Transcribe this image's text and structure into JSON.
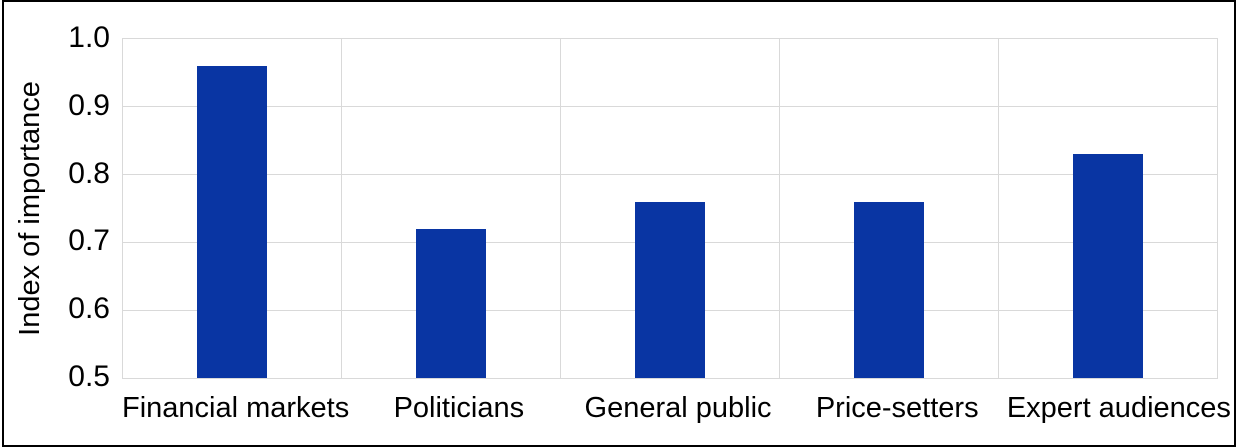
{
  "chart_data": {
    "type": "bar",
    "title": "",
    "xlabel": "",
    "ylabel": "Index of importance",
    "categories": [
      "Financial markets",
      "Politicians",
      "General public",
      "Price-setters",
      "Expert audiences"
    ],
    "values": [
      0.96,
      0.72,
      0.76,
      0.76,
      0.83
    ],
    "ylim": [
      0.5,
      1.0
    ],
    "ytick_labels": [
      "1.0",
      "0.9",
      "0.8",
      "0.7",
      "0.6",
      "0.5"
    ],
    "grid": true,
    "legend": false,
    "colors": {
      "bar": "#0935a3",
      "gridline": "#d9d9d9",
      "text": "#000000",
      "frame_border": "#000000",
      "background": "#ffffff"
    }
  }
}
